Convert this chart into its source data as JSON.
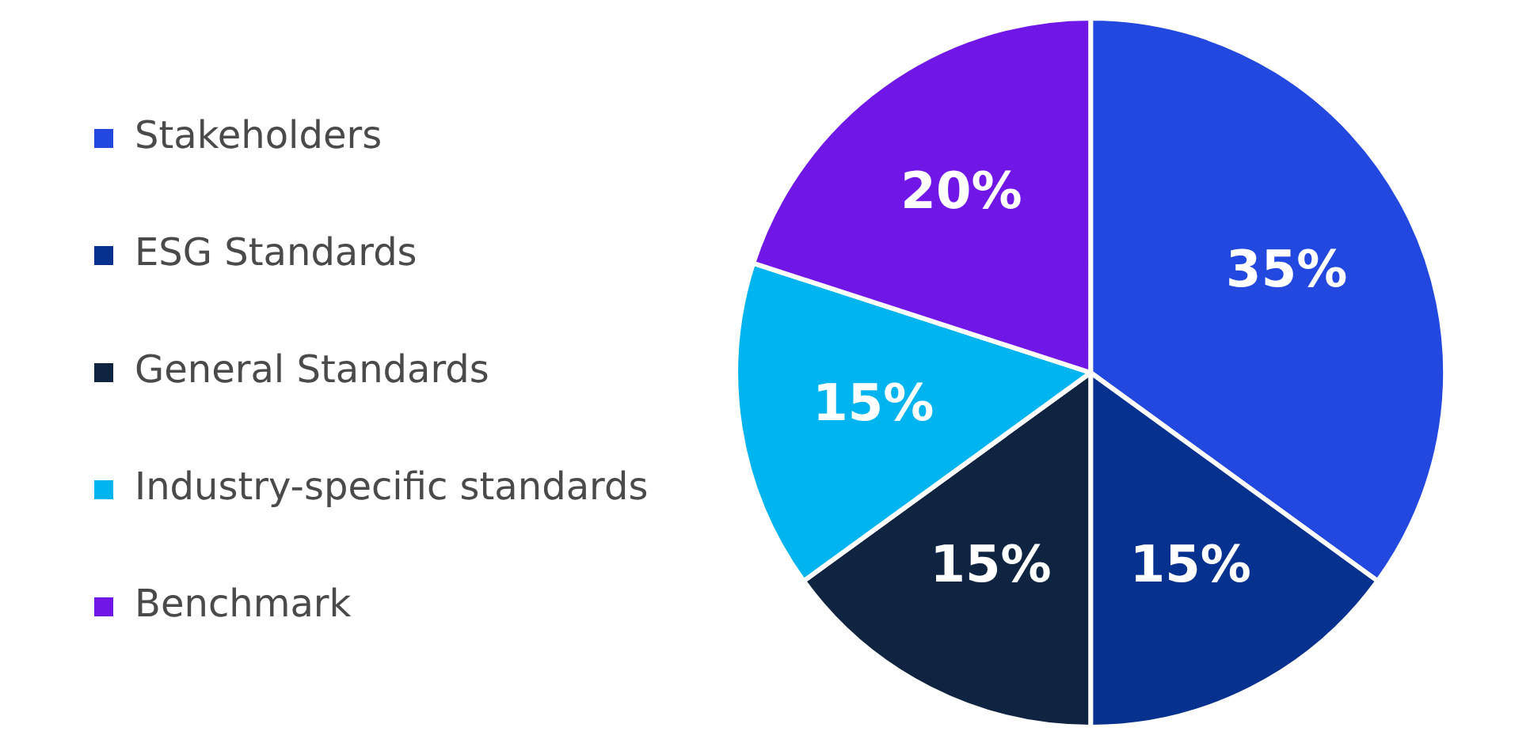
{
  "chart_data": {
    "type": "pie",
    "categories": [
      "Stakeholders",
      "ESG Standards",
      "General Standards",
      "Industry-specific standards",
      "Benchmark"
    ],
    "values": [
      35,
      15,
      15,
      15,
      20
    ],
    "colors": [
      "#2248e0",
      "#07318e",
      "#0f2440",
      "#00b4f0",
      "#7017e8"
    ],
    "value_labels": [
      "35%",
      "15%",
      "15%",
      "15%",
      "20%"
    ],
    "legend": "left"
  }
}
